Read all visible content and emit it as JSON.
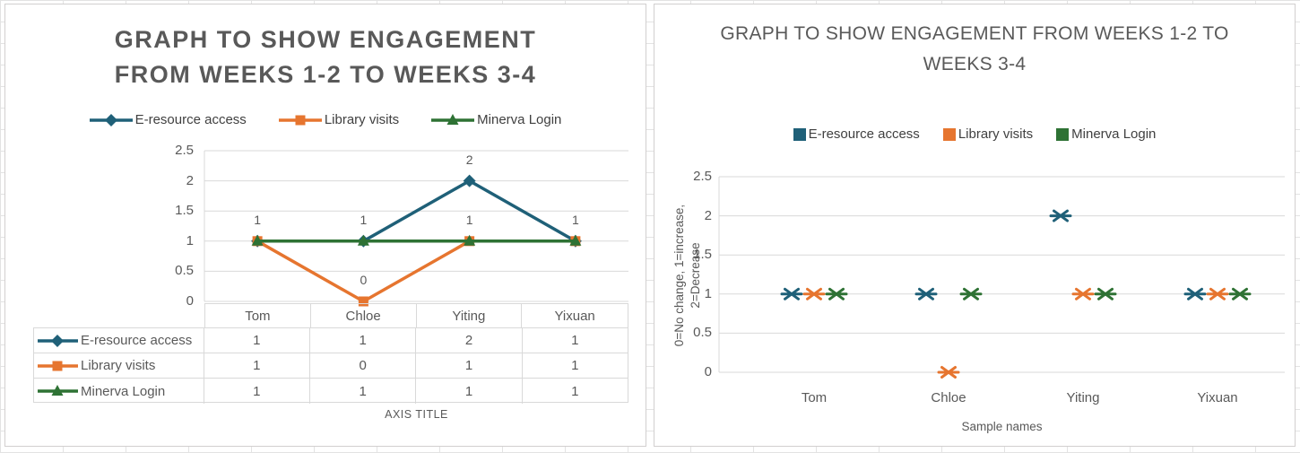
{
  "colors": {
    "blue": "#1F6078",
    "orange": "#E6752F",
    "green": "#2E7234",
    "title_text": "#595959",
    "axis_text": "#595959",
    "legend_text": "#404040",
    "gridline": "#D9D9D9",
    "table_border": "#D9D9D9",
    "card_border": "#D2CFCF"
  },
  "left_chart": {
    "title_lines": [
      "GRAPH TO SHOW ENGAGEMENT",
      "FROM WEEKS 1-2 TO WEEKS 3-4"
    ],
    "axis_title": "AXIS TITLE"
  },
  "right_chart": {
    "title_lines": [
      "GRAPH TO SHOW ENGAGEMENT FROM WEEKS 1-2 TO",
      "WEEKS 3-4"
    ],
    "y_axis_title_lines": [
      "0=No change, 1=increase,",
      "2=Decrease"
    ],
    "x_axis_title": "Sample names"
  },
  "chart_data": [
    {
      "type": "line",
      "title": "GRAPH TO SHOW ENGAGEMENT FROM WEEKS 1-2 TO WEEKS 3-4",
      "categories": [
        "Tom",
        "Chloe",
        "Yiting",
        "Yixuan"
      ],
      "series": [
        {
          "name": "E-resource access",
          "marker": "diamond",
          "color": "#1F6078",
          "values": [
            1,
            1,
            2,
            1
          ]
        },
        {
          "name": "Library visits",
          "marker": "square",
          "color": "#E6752F",
          "values": [
            1,
            0,
            1,
            1
          ]
        },
        {
          "name": "Minerva Login",
          "marker": "triangle",
          "color": "#2E7234",
          "values": [
            1,
            1,
            1,
            1
          ]
        }
      ],
      "ylim": [
        0,
        2.5
      ],
      "y_tick_step": 0.5,
      "y_ticks": [
        "0",
        "0.5",
        "1",
        "1.5",
        "2",
        "2.5"
      ],
      "xlabel": "AXIS TITLE",
      "legend_position": "top",
      "grid": "horizontal",
      "data_labels": true,
      "data_table": true
    },
    {
      "type": "scatter",
      "title": "GRAPH TO SHOW ENGAGEMENT FROM WEEKS 1-2 TO WEEKS 3-4",
      "categories": [
        "Tom",
        "Chloe",
        "Yiting",
        "Yixuan"
      ],
      "series": [
        {
          "name": "E-resource access",
          "marker": "asterisk-x",
          "color": "#1F6078",
          "values": [
            1,
            1,
            2,
            1
          ]
        },
        {
          "name": "Library visits",
          "marker": "asterisk-x",
          "color": "#E6752F",
          "values": [
            1,
            0,
            1,
            1
          ]
        },
        {
          "name": "Minerva Login",
          "marker": "asterisk-x",
          "color": "#2E7234",
          "values": [
            1,
            1,
            1,
            1
          ]
        }
      ],
      "ylim": [
        0,
        2.5
      ],
      "y_tick_step": 0.5,
      "y_ticks": [
        "0",
        "0.5",
        "1",
        "1.5",
        "2",
        "2.5"
      ],
      "ylabel": "0=No change, 1=increase, 2=Decrease",
      "xlabel": "Sample names",
      "legend_position": "top",
      "grid": "horizontal",
      "data_labels": false,
      "data_table": false
    }
  ]
}
